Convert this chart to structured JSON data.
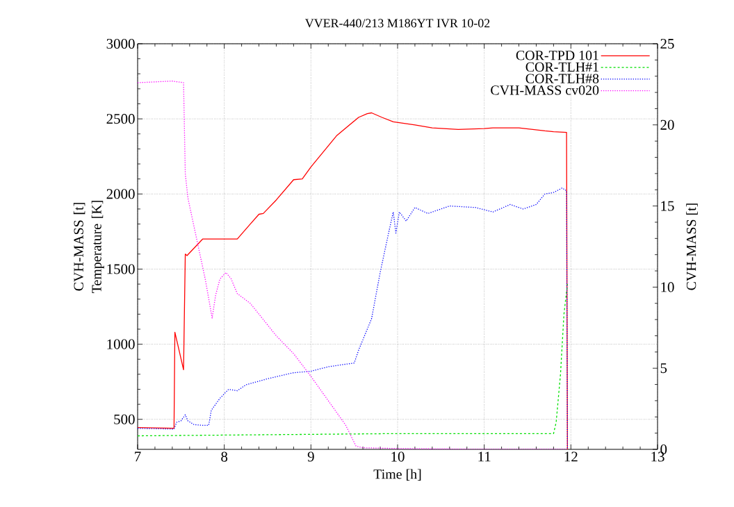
{
  "chart_data": {
    "type": "line",
    "title": "VVER-440/213 M186YT IVR 10-02",
    "xlabel": "Time [h]",
    "ylabel": "CVH-MASS [t] Temperature [K]",
    "y2label": "CVH-MASS [t]",
    "xlim": [
      7,
      13
    ],
    "xticks": [
      7,
      8,
      9,
      10,
      11,
      12,
      13
    ],
    "ylim": [
      300,
      3000
    ],
    "yticks": [
      500,
      1000,
      1500,
      2000,
      2500,
      3000
    ],
    "y2lim": [
      0,
      25
    ],
    "y2ticks": [
      0,
      5,
      10,
      15,
      20,
      25
    ],
    "grid": true,
    "legend": "top right",
    "marker": "none",
    "series": [
      {
        "name": "COR-TPD 101",
        "color": "#ff0000",
        "line_style": "solid",
        "x": [
          7,
          7.42,
          7.43,
          7.53,
          7.55,
          7.57,
          7.75,
          8.15,
          8.3,
          8.4,
          8.45,
          8.6,
          8.8,
          8.9,
          9.0,
          9.3,
          9.55,
          9.65,
          9.7,
          9.82,
          9.95,
          10.2,
          10.4,
          10.7,
          11.0,
          11.1,
          11.4,
          11.7,
          11.8,
          11.95,
          11.96
        ],
        "values": [
          445,
          440,
          1080,
          830,
          1600,
          1590,
          1700,
          1700,
          1800,
          1865,
          1870,
          1960,
          2095,
          2100,
          2180,
          2390,
          2510,
          2535,
          2540,
          2510,
          2480,
          2460,
          2440,
          2430,
          2435,
          2440,
          2440,
          2420,
          2415,
          2410,
          300
        ]
      },
      {
        "name": "COR-TLH#1",
        "color": "#00e000",
        "line_style": "dashed",
        "x": [
          7,
          8,
          9,
          10,
          11,
          11.8,
          11.83,
          11.88,
          11.92,
          11.96
        ],
        "values": [
          390,
          395,
          400,
          405,
          405,
          405,
          480,
          800,
          1200,
          1400
        ]
      },
      {
        "name": "COR-TLH#8",
        "color": "#0000ff",
        "line_style": "dotted",
        "x": [
          7,
          7.42,
          7.45,
          7.5,
          7.55,
          7.58,
          7.65,
          7.75,
          7.82,
          7.85,
          7.95,
          8.05,
          8.15,
          8.25,
          8.5,
          8.8,
          9.0,
          9.2,
          9.5,
          9.55,
          9.7,
          9.8,
          9.9,
          9.95,
          9.98,
          10.02,
          10.1,
          10.2,
          10.35,
          10.6,
          10.9,
          11.1,
          11.3,
          11.45,
          11.6,
          11.7,
          11.8,
          11.9,
          11.95,
          11.96
        ],
        "values": [
          440,
          435,
          480,
          490,
          530,
          490,
          465,
          460,
          460,
          560,
          640,
          700,
          690,
          730,
          770,
          810,
          820,
          850,
          875,
          960,
          1170,
          1480,
          1750,
          1880,
          1740,
          1880,
          1820,
          1910,
          1870,
          1920,
          1910,
          1880,
          1930,
          1900,
          1930,
          2000,
          2010,
          2040,
          2020,
          300
        ]
      },
      {
        "name": "CVH-MASS cv020",
        "color": "#ff00ff",
        "line_style": "dotted",
        "axis": "y2",
        "x": [
          7,
          7.4,
          7.53,
          7.55,
          7.58,
          7.62,
          7.7,
          7.78,
          7.86,
          7.9,
          7.95,
          8.02,
          8.08,
          8.15,
          8.3,
          8.45,
          8.6,
          8.8,
          9.0,
          9.2,
          9.4,
          9.52,
          9.6,
          10,
          11,
          11.96
        ],
        "values": [
          22.6,
          22.7,
          22.6,
          17,
          15.5,
          14.5,
          12.5,
          10.5,
          8.1,
          9.5,
          10.5,
          10.9,
          10.5,
          9.6,
          9.0,
          8.0,
          7.0,
          5.9,
          4.5,
          3.0,
          1.5,
          0.2,
          0.1,
          0.05,
          0,
          0
        ]
      }
    ]
  }
}
